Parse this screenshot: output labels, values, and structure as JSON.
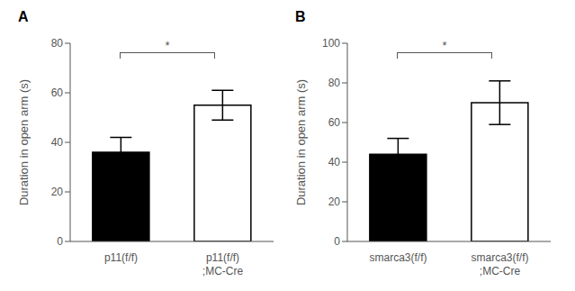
{
  "chart_data": [
    {
      "type": "bar",
      "title": "A",
      "categories": [
        "p11(f/f)",
        "p11(f/f);MC-Cre"
      ],
      "values": [
        36,
        55
      ],
      "errors": [
        6,
        6
      ],
      "colors": [
        "#000000",
        "#ffffff"
      ],
      "y_label": "Duration in open arm (s)",
      "ylim": [
        0,
        80
      ],
      "yticks": [
        0,
        20,
        40,
        60,
        80
      ],
      "annotations": [
        "*"
      ],
      "grid": false
    },
    {
      "type": "bar",
      "title": "B",
      "categories": [
        "smarca3(f/f)",
        "smarca3(f/f);MC-Cre"
      ],
      "values": [
        44,
        70
      ],
      "errors": [
        8,
        11
      ],
      "colors": [
        "#000000",
        "#ffffff"
      ],
      "y_label": "Duration in open arm (s)",
      "ylim": [
        0,
        100
      ],
      "yticks": [
        0,
        20,
        40,
        60,
        80,
        100
      ],
      "annotations": [
        "*"
      ],
      "grid": false
    }
  ]
}
